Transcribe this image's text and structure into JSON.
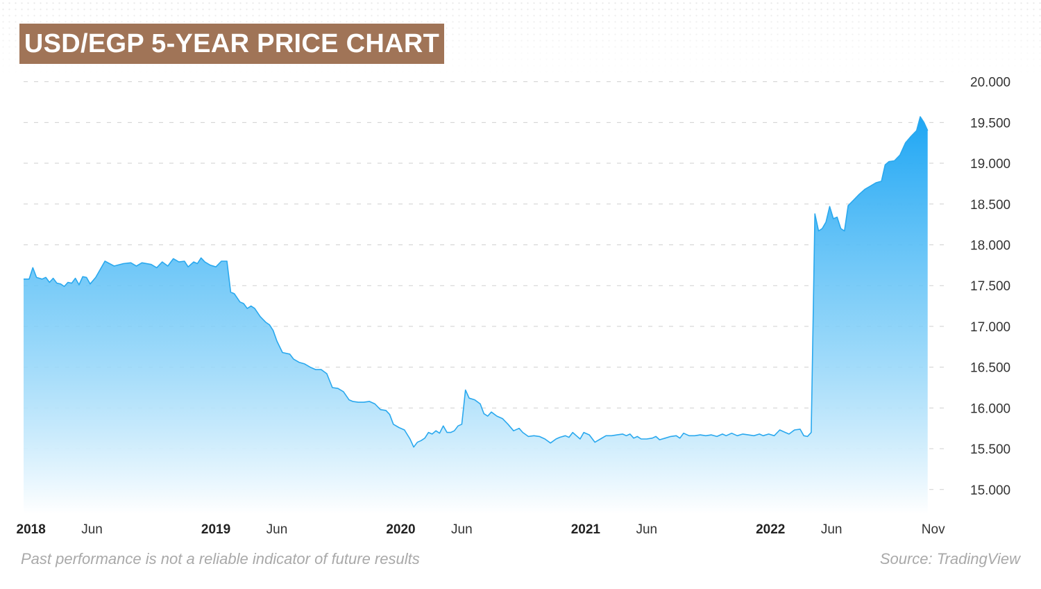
{
  "title": "USD/EGP 5-YEAR PRICE CHART",
  "footer": {
    "disclaimer": "Past performance is not a reliable indicator of future results",
    "source": "Source: TradingView"
  },
  "colors": {
    "title_bg": "#a07457",
    "line": "#29a8ee",
    "fill_top": "#1ea6f4",
    "fill_bottom": "#ffffff",
    "grid": "#cfcfcf"
  },
  "chart_data": {
    "type": "area",
    "title": "USD/EGP 5-YEAR PRICE CHART",
    "xlabel": "",
    "ylabel": "",
    "x_range": [
      2017.96,
      2022.96
    ],
    "ylim": [
      14.7,
      20.15
    ],
    "grid": true,
    "legend": "none",
    "y_ticks": [
      {
        "value": 15.0,
        "label": "15.000"
      },
      {
        "value": 15.5,
        "label": "15.500"
      },
      {
        "value": 16.0,
        "label": "16.000"
      },
      {
        "value": 16.5,
        "label": "16.500"
      },
      {
        "value": 17.0,
        "label": "17.000"
      },
      {
        "value": 17.5,
        "label": "17.500"
      },
      {
        "value": 18.0,
        "label": "18.000"
      },
      {
        "value": 18.5,
        "label": "18.500"
      },
      {
        "value": 19.0,
        "label": "19.000"
      },
      {
        "value": 19.5,
        "label": "19.500"
      },
      {
        "value": 20.0,
        "label": "20.000"
      }
    ],
    "x_ticks": [
      {
        "t": 2018.0,
        "label": "2018",
        "bold": true
      },
      {
        "t": 2018.33,
        "label": "Jun",
        "bold": false
      },
      {
        "t": 2019.0,
        "label": "2019",
        "bold": true
      },
      {
        "t": 2019.33,
        "label": "Jun",
        "bold": false
      },
      {
        "t": 2020.0,
        "label": "2020",
        "bold": true
      },
      {
        "t": 2020.33,
        "label": "Jun",
        "bold": false
      },
      {
        "t": 2021.0,
        "label": "2021",
        "bold": true
      },
      {
        "t": 2021.33,
        "label": "Jun",
        "bold": false
      },
      {
        "t": 2022.0,
        "label": "2022",
        "bold": true
      },
      {
        "t": 2022.33,
        "label": "Jun",
        "bold": false
      },
      {
        "t": 2022.88,
        "label": "Nov",
        "bold": false
      }
    ],
    "series": [
      {
        "name": "USD/EGP",
        "points": [
          [
            2017.96,
            17.58
          ],
          [
            2017.99,
            17.58
          ],
          [
            2018.01,
            17.72
          ],
          [
            2018.03,
            17.6
          ],
          [
            2018.06,
            17.58
          ],
          [
            2018.08,
            17.6
          ],
          [
            2018.1,
            17.54
          ],
          [
            2018.12,
            17.59
          ],
          [
            2018.14,
            17.53
          ],
          [
            2018.16,
            17.52
          ],
          [
            2018.18,
            17.49
          ],
          [
            2018.2,
            17.54
          ],
          [
            2018.22,
            17.53
          ],
          [
            2018.24,
            17.59
          ],
          [
            2018.26,
            17.51
          ],
          [
            2018.28,
            17.61
          ],
          [
            2018.3,
            17.6
          ],
          [
            2018.32,
            17.52
          ],
          [
            2018.35,
            17.6
          ],
          [
            2018.4,
            17.8
          ],
          [
            2018.45,
            17.74
          ],
          [
            2018.5,
            17.77
          ],
          [
            2018.54,
            17.78
          ],
          [
            2018.57,
            17.74
          ],
          [
            2018.6,
            17.78
          ],
          [
            2018.65,
            17.76
          ],
          [
            2018.68,
            17.72
          ],
          [
            2018.71,
            17.79
          ],
          [
            2018.74,
            17.74
          ],
          [
            2018.77,
            17.83
          ],
          [
            2018.8,
            17.79
          ],
          [
            2018.83,
            17.8
          ],
          [
            2018.85,
            17.73
          ],
          [
            2018.88,
            17.79
          ],
          [
            2018.9,
            17.77
          ],
          [
            2018.92,
            17.84
          ],
          [
            2018.94,
            17.79
          ],
          [
            2018.97,
            17.75
          ],
          [
            2019.0,
            17.73
          ],
          [
            2019.03,
            17.8
          ],
          [
            2019.06,
            17.8
          ],
          [
            2019.08,
            17.42
          ],
          [
            2019.1,
            17.4
          ],
          [
            2019.13,
            17.3
          ],
          [
            2019.15,
            17.28
          ],
          [
            2019.17,
            17.22
          ],
          [
            2019.19,
            17.25
          ],
          [
            2019.21,
            17.22
          ],
          [
            2019.24,
            17.12
          ],
          [
            2019.27,
            17.05
          ],
          [
            2019.29,
            17.02
          ],
          [
            2019.31,
            16.95
          ],
          [
            2019.33,
            16.82
          ],
          [
            2019.36,
            16.68
          ],
          [
            2019.4,
            16.66
          ],
          [
            2019.42,
            16.6
          ],
          [
            2019.45,
            16.56
          ],
          [
            2019.48,
            16.54
          ],
          [
            2019.51,
            16.5
          ],
          [
            2019.54,
            16.47
          ],
          [
            2019.57,
            16.47
          ],
          [
            2019.6,
            16.42
          ],
          [
            2019.63,
            16.25
          ],
          [
            2019.66,
            16.24
          ],
          [
            2019.69,
            16.2
          ],
          [
            2019.72,
            16.1
          ],
          [
            2019.74,
            16.08
          ],
          [
            2019.77,
            16.07
          ],
          [
            2019.8,
            16.07
          ],
          [
            2019.83,
            16.08
          ],
          [
            2019.86,
            16.05
          ],
          [
            2019.89,
            15.98
          ],
          [
            2019.92,
            15.97
          ],
          [
            2019.94,
            15.92
          ],
          [
            2019.96,
            15.8
          ],
          [
            2019.99,
            15.76
          ],
          [
            2020.02,
            15.73
          ],
          [
            2020.05,
            15.62
          ],
          [
            2020.07,
            15.52
          ],
          [
            2020.09,
            15.58
          ],
          [
            2020.11,
            15.6
          ],
          [
            2020.13,
            15.63
          ],
          [
            2020.15,
            15.7
          ],
          [
            2020.17,
            15.68
          ],
          [
            2020.19,
            15.72
          ],
          [
            2020.21,
            15.69
          ],
          [
            2020.23,
            15.78
          ],
          [
            2020.25,
            15.7
          ],
          [
            2020.27,
            15.7
          ],
          [
            2020.29,
            15.72
          ],
          [
            2020.31,
            15.78
          ],
          [
            2020.33,
            15.8
          ],
          [
            2020.35,
            16.22
          ],
          [
            2020.37,
            16.12
          ],
          [
            2020.4,
            16.1
          ],
          [
            2020.43,
            16.05
          ],
          [
            2020.45,
            15.93
          ],
          [
            2020.47,
            15.9
          ],
          [
            2020.49,
            15.95
          ],
          [
            2020.52,
            15.9
          ],
          [
            2020.55,
            15.87
          ],
          [
            2020.58,
            15.8
          ],
          [
            2020.61,
            15.72
          ],
          [
            2020.64,
            15.75
          ],
          [
            2020.66,
            15.7
          ],
          [
            2020.69,
            15.65
          ],
          [
            2020.72,
            15.66
          ],
          [
            2020.75,
            15.65
          ],
          [
            2020.78,
            15.62
          ],
          [
            2020.81,
            15.57
          ],
          [
            2020.84,
            15.62
          ],
          [
            2020.86,
            15.64
          ],
          [
            2020.89,
            15.66
          ],
          [
            2020.91,
            15.64
          ],
          [
            2020.93,
            15.7
          ],
          [
            2020.95,
            15.66
          ],
          [
            2020.97,
            15.62
          ],
          [
            2020.99,
            15.7
          ],
          [
            2021.02,
            15.67
          ],
          [
            2021.05,
            15.58
          ],
          [
            2021.08,
            15.62
          ],
          [
            2021.11,
            15.66
          ],
          [
            2021.14,
            15.66
          ],
          [
            2021.17,
            15.67
          ],
          [
            2021.2,
            15.68
          ],
          [
            2021.22,
            15.66
          ],
          [
            2021.24,
            15.68
          ],
          [
            2021.26,
            15.63
          ],
          [
            2021.28,
            15.65
          ],
          [
            2021.3,
            15.62
          ],
          [
            2021.33,
            15.62
          ],
          [
            2021.36,
            15.63
          ],
          [
            2021.38,
            15.65
          ],
          [
            2021.4,
            15.61
          ],
          [
            2021.43,
            15.63
          ],
          [
            2021.46,
            15.65
          ],
          [
            2021.49,
            15.66
          ],
          [
            2021.51,
            15.63
          ],
          [
            2021.53,
            15.69
          ],
          [
            2021.56,
            15.66
          ],
          [
            2021.59,
            15.66
          ],
          [
            2021.62,
            15.67
          ],
          [
            2021.65,
            15.66
          ],
          [
            2021.68,
            15.67
          ],
          [
            2021.71,
            15.65
          ],
          [
            2021.74,
            15.68
          ],
          [
            2021.76,
            15.66
          ],
          [
            2021.79,
            15.69
          ],
          [
            2021.82,
            15.66
          ],
          [
            2021.85,
            15.68
          ],
          [
            2021.88,
            15.67
          ],
          [
            2021.91,
            15.66
          ],
          [
            2021.94,
            15.68
          ],
          [
            2021.96,
            15.66
          ],
          [
            2021.99,
            15.68
          ],
          [
            2022.02,
            15.66
          ],
          [
            2022.05,
            15.73
          ],
          [
            2022.08,
            15.7
          ],
          [
            2022.1,
            15.68
          ],
          [
            2022.13,
            15.73
          ],
          [
            2022.16,
            15.74
          ],
          [
            2022.18,
            15.66
          ],
          [
            2022.2,
            15.65
          ],
          [
            2022.22,
            15.7
          ],
          [
            2022.24,
            18.38
          ],
          [
            2022.26,
            18.17
          ],
          [
            2022.28,
            18.2
          ],
          [
            2022.3,
            18.28
          ],
          [
            2022.32,
            18.47
          ],
          [
            2022.34,
            18.32
          ],
          [
            2022.36,
            18.34
          ],
          [
            2022.38,
            18.2
          ],
          [
            2022.4,
            18.17
          ],
          [
            2022.42,
            18.48
          ],
          [
            2022.45,
            18.55
          ],
          [
            2022.48,
            18.62
          ],
          [
            2022.51,
            18.68
          ],
          [
            2022.54,
            18.72
          ],
          [
            2022.57,
            18.76
          ],
          [
            2022.6,
            18.78
          ],
          [
            2022.62,
            18.98
          ],
          [
            2022.64,
            19.02
          ],
          [
            2022.67,
            19.03
          ],
          [
            2022.7,
            19.1
          ],
          [
            2022.73,
            19.25
          ],
          [
            2022.76,
            19.33
          ],
          [
            2022.79,
            19.4
          ],
          [
            2022.81,
            19.57
          ],
          [
            2022.83,
            19.5
          ],
          [
            2022.85,
            19.4
          ]
        ]
      }
    ]
  }
}
